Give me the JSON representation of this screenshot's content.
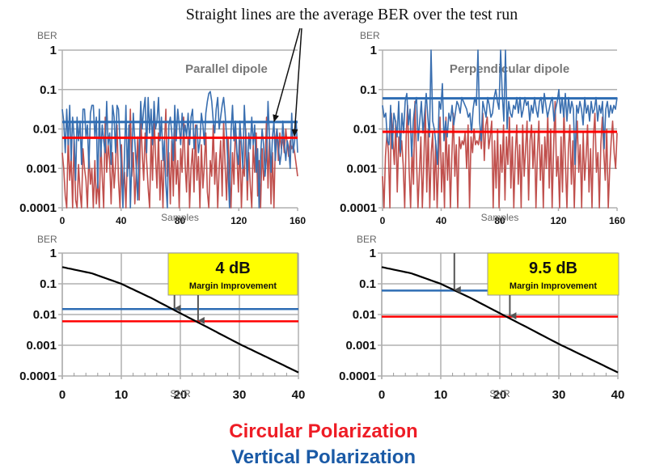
{
  "annotation": "Straight lines are the average BER over the test run",
  "legend": [
    {
      "label": "Circular Polarization",
      "color": "#ee1c25"
    },
    {
      "label": "Vertical Polarization",
      "color": "#1a5aa6"
    }
  ],
  "colors": {
    "vertical_line": "#3a6fb0",
    "vertical_avg": "#2e6db4",
    "circular_line": "#c0504d",
    "circular_avg": "#ff0000",
    "curve": "#000000",
    "grid": "#b0b0b0",
    "box_fill": "#ffff00"
  },
  "chart_data": [
    {
      "id": "parallel",
      "type": "line",
      "title": "Parallel dipole",
      "xlabel": "Samples",
      "ylabel": "BER",
      "yscale": "log",
      "ylim": [
        0.0001,
        1
      ],
      "xlim": [
        0,
        160
      ],
      "xticks": [
        "0",
        "40",
        "80",
        "120",
        "160"
      ],
      "yticks": [
        "1",
        "0.1",
        "0.01",
        "0.001",
        "0.0001"
      ],
      "grid": true,
      "series": [
        {
          "name": "Vertical Polarization",
          "avg": 0.015,
          "log_values": [
            -1.5,
            -1.8,
            -2.6,
            -1.5,
            -2.4,
            -1.4,
            -2.8,
            -1.7,
            -2.2,
            -3.3,
            -1.7,
            -2.3,
            -1.8,
            -2.9,
            -1.5,
            -1.5,
            -2.2,
            -1.9,
            -3.0,
            -1.6,
            -1.4,
            -1.4,
            -2.2,
            -1.7,
            -3.5,
            -1.5,
            -2.7,
            -1.9,
            -2.3,
            -2.6,
            -1.3,
            -2.4,
            -2.1,
            -2.9,
            -1.4,
            -1.7,
            -2.6,
            -1.4,
            -1.5,
            -2.3,
            -3.1,
            -4.0,
            -2.7,
            -1.4,
            -3.2,
            -1.9,
            -4.0,
            -2.8,
            -1.6,
            -2.3,
            -3.0,
            -3.8,
            -2.5,
            -1.3,
            -2.0,
            -1.5,
            -1.2,
            -2.6,
            -1.2,
            -2.1,
            -1.5,
            -2.4,
            -1.3,
            -2.0,
            -1.8,
            -1.2,
            -2.3,
            -1.7,
            -2.8,
            -2.3,
            -3.4,
            -4.0,
            -1.9,
            -1.7,
            -2.1,
            -2.8,
            -1.4,
            -2.3,
            -1.5,
            -1.9,
            -2.4,
            -1.6,
            -2.2,
            -1.9,
            -2.2,
            -1.6,
            -2.4,
            -1.7,
            -1.5,
            -2.5,
            -2.0,
            -1.9,
            -2.6,
            -2.3,
            -1.6,
            -1.9,
            -2.4,
            -1.6,
            -1.3,
            -1.1,
            -1.05,
            -1.3,
            -1.8,
            -2.1,
            -1.5,
            -1.2,
            -2.0,
            -1.7,
            -1.4,
            -1.2,
            -1.6,
            -2.2,
            -3.0,
            -4.0,
            -2.1,
            -1.4,
            -2.3,
            -1.8,
            -2.6,
            -2.9,
            -1.8,
            -2.4,
            -3.0,
            -1.4,
            -2.2,
            -3.3,
            -2.1,
            -2.5,
            -1.7,
            -2.4,
            -1.9,
            -3.1,
            -2.5,
            -4.0,
            -2.7,
            -2.0,
            -2.4,
            -3.2,
            -2.7,
            -1.3,
            -2.2,
            -3.1,
            -2.2,
            -1.8,
            -2.8,
            -2.0,
            -2.4,
            -2.9,
            -2.6,
            -1.8,
            -2.4,
            -2.8,
            -2.3,
            -2.5,
            -3.0,
            -1.6,
            -2.6,
            -2.3,
            -1.8,
            -2.6
          ],
          "color_key": "vertical_line"
        },
        {
          "name": "Circular Polarization",
          "avg": 0.006,
          "log_values": [
            -2.6,
            -3.0,
            -3.7,
            -4.0,
            -2.2,
            -3.3,
            -2.7,
            -4.0,
            -2.2,
            -3.8,
            -4.0,
            -2.9,
            -3.6,
            -4.0,
            -2.5,
            -3.0,
            -3.3,
            -4.0,
            -2.6,
            -3.4,
            -3.0,
            -4.0,
            -2.8,
            -3.9,
            -3.3,
            -4.0,
            -2.3,
            -3.2,
            -4.0,
            -1.7,
            -3.1,
            -2.4,
            -2.8,
            -3.9,
            -2.6,
            -3.5,
            -2.9,
            -1.9,
            -3.3,
            -4.0,
            -2.4,
            -3.6,
            -3.1,
            -4.0,
            -2.7,
            -3.0,
            -1.5,
            -3.2,
            -2.6,
            -3.9,
            -3.1,
            -2.2,
            -3.8,
            -1.6,
            -2.6,
            -3.3,
            -2.1,
            -2.8,
            -3.5,
            -4.0,
            -2.2,
            -3.3,
            -1.6,
            -2.7,
            -3.5,
            -2.1,
            -3.8,
            -2.8,
            -4.0,
            -2.4,
            -1.5,
            -3.2,
            -2.6,
            -3.9,
            -2.3,
            -3.7,
            -2.0,
            -3.4,
            -2.8,
            -4.0,
            -2.5,
            -3.1,
            -1.7,
            -2.9,
            -3.6,
            -2.2,
            -4.0,
            -3.0,
            -2.5,
            -3.6,
            -1.9,
            -3.3,
            -2.7,
            -4.0,
            -2.4,
            -3.5,
            -2.9,
            -2.1,
            -3.6,
            -4.0,
            -2.8,
            -3.2,
            -1.9,
            -3.4,
            -2.6,
            -4.0,
            -3.0,
            -2.3,
            -3.7,
            -1.8,
            -2.9,
            -3.8,
            -2.2,
            -3.1,
            -4.0,
            -2.6,
            -3.4,
            -1.9,
            -2.7,
            -3.6,
            -2.3,
            -4.0,
            -2.9,
            -3.2,
            -2.0,
            -3.8,
            -2.6,
            -3.4,
            -4.0,
            -2.4,
            -3.1,
            -2.1,
            -3.7,
            -2.8,
            -4.0,
            -2.5,
            -3.3,
            -2.9,
            -1.7,
            -3.5,
            -2.2,
            -3.9,
            -2.6,
            -4.0,
            -2.3,
            -2.0,
            -2.8,
            -2.1,
            -2.5,
            -2.2,
            -2.6,
            -2.0,
            -2.4,
            -2.7,
            -2.3,
            -2.5,
            -2.4,
            -2.6,
            -2.9,
            -3.2
          ],
          "color_key": "circular_line"
        }
      ],
      "annotation_arrows_target": [
        "Vertical avg line",
        "Circular avg line"
      ]
    },
    {
      "id": "perpendicular",
      "type": "line",
      "title": "Perpendicular dipole",
      "xlabel": "Samples",
      "ylabel": "BER",
      "yscale": "log",
      "ylim": [
        0.0001,
        1
      ],
      "xlim": [
        0,
        160
      ],
      "xticks": [
        "0",
        "40",
        "80",
        "120",
        "160"
      ],
      "yticks": [
        "1",
        "0.1",
        "0.01",
        "0.001",
        "0.0001"
      ],
      "grid": true,
      "series": [
        {
          "name": "Vertical Polarization",
          "avg": 0.06,
          "log_values": [
            -1.4,
            -1.7,
            -1.6,
            -2.3,
            -2.4,
            -1.4,
            -2.5,
            -1.6,
            -1.8,
            -2.2,
            -1.3,
            -2.6,
            -1.6,
            -2.1,
            -1.3,
            -1.1,
            -1.9,
            -1.5,
            -2.7,
            -1.8,
            -1.4,
            -1.2,
            -2.3,
            -1.8,
            -1.3,
            -2.1,
            -1.6,
            -1.1,
            -1.7,
            -2.2,
            -0.0,
            -1.8,
            -2.0,
            -2.4,
            -2.9,
            -1.3,
            -1.5,
            -0.85,
            -2.3,
            -1.8,
            -2.2,
            -1.6,
            -1.8,
            -1.4,
            -1.9,
            -1.6,
            -1.3,
            -1.4,
            -1.6,
            -1.2,
            -1.3,
            -1.4,
            -1.5,
            -1.7,
            -1.6,
            -2.1,
            -1.5,
            -1.2,
            -1.4,
            -0.0,
            -1.8,
            -2.3,
            -1.3,
            -1.5,
            -1.7,
            -1.2,
            -1.4,
            -1.7,
            -1.6,
            -1.2,
            -1.0,
            -1.3,
            -1.5,
            -0.0,
            -1.1,
            -1.8,
            -0.0,
            -2.0,
            -1.3,
            -1.6,
            -1.7,
            -1.4,
            -1.5,
            -1.2,
            -1.6,
            -1.2,
            -1.7,
            -1.5,
            -1.2,
            -1.4,
            -1.3,
            -1.8,
            -1.4,
            -1.6,
            -1.2,
            -1.5,
            -1.7,
            -1.3,
            -1.2,
            -1.6,
            -1.1,
            -1.4,
            -1.7,
            -1.5,
            -1.3,
            -1.2,
            -1.8,
            -1.5,
            -1.3,
            -1.0,
            -1.6,
            -1.2,
            -1.7,
            -1.1,
            -1.8,
            -1.2,
            -1.6,
            -1.3,
            -1.5,
            -2.9,
            -1.4,
            -1.6,
            -1.3,
            -1.5,
            -1.9,
            -1.2,
            -1.6,
            -1.4,
            -1.8,
            -1.3,
            -1.6,
            -1.5,
            -1.2,
            -1.8,
            -1.4,
            -1.6,
            -1.3,
            -2.5,
            -1.5,
            -1.3,
            -1.7,
            -1.4,
            -1.6,
            -1.4,
            -1.5,
            -1.2
          ],
          "color_key": "vertical_line"
        },
        {
          "name": "Circular Polarization",
          "avg": 0.0085,
          "log_values": [
            -3.2,
            -4.0,
            -2.7,
            -2.1,
            -2.6,
            -4.0,
            -1.6,
            -2.3,
            -2.9,
            -1.8,
            -3.6,
            -2.2,
            -2.7,
            -2.3,
            -2.9,
            -4.0,
            -2.2,
            -1.4,
            -3.0,
            -4.0,
            -2.5,
            -3.4,
            -1.3,
            -2.7,
            -4.0,
            -3.1,
            -2.2,
            -4.0,
            -2.8,
            -1.4,
            -3.6,
            -2.0,
            -4.0,
            -2.6,
            -2.1,
            -3.8,
            -2.3,
            -4.0,
            -2.9,
            -1.7,
            -3.6,
            -2.6,
            -4.0,
            -1.7,
            -3.3,
            -2.4,
            -4.0,
            -2.7,
            -1.6,
            -3.2,
            -2.4,
            -4.0,
            -2.2,
            -2.5,
            -2.3,
            -2.4,
            -2.1,
            -3.0,
            -1.9,
            -4.0,
            -2.2,
            -2.6,
            -2.0,
            -2.4,
            -2.3,
            -2.4,
            -2.1,
            -2.5,
            -1.6,
            -2.8,
            -1.9,
            -1.7,
            -2.5,
            -2.2,
            -1.8,
            -4.0,
            -2.3,
            -3.5,
            -2.0,
            -4.0,
            -2.4,
            -3.1,
            -1.9,
            -3.8,
            -2.2,
            -2.9,
            -1.7,
            -3.5,
            -2.2,
            -4.0,
            -2.6,
            -1.9,
            -3.4,
            -2.4,
            -4.0,
            -1.9,
            -3.2,
            -2.5,
            -1.8,
            -3.8,
            -2.3,
            -1.9,
            -3.0,
            -2.1,
            -4.0,
            -2.6,
            -1.8,
            -3.3,
            -2.4,
            -4.0,
            -2.2,
            -3.0,
            -1.6,
            -3.5,
            -2.0,
            -4.0,
            -2.4,
            -1.3,
            -3.2,
            -2.7,
            -4.0,
            -2.2,
            -3.6,
            -1.5,
            -2.9,
            -4.0,
            -2.5,
            -1.9,
            -3.4,
            -2.3,
            -4.0,
            -2.6,
            -1.8,
            -3.1,
            -2.4,
            -4.0,
            -2.1,
            -3.3,
            -2.7,
            -1.9,
            -3.6,
            -2.5,
            -4.0,
            -2.2,
            -1.6,
            -3.1,
            -2.6,
            -4.0,
            -2.4,
            -1.7,
            -2.6,
            -3.3,
            -2.0,
            -4.0,
            -3.0,
            -2.3,
            -1.8,
            -2.6,
            -3.0,
            -2.1
          ],
          "color_key": "circular_line"
        }
      ]
    },
    {
      "id": "parallel_snr",
      "type": "line",
      "title": "",
      "xlabel": "SNR",
      "ylabel": "BER",
      "yscale": "log",
      "ylim": [
        0.0001,
        1
      ],
      "xlim": [
        0,
        40
      ],
      "xticks": [
        "0",
        "10",
        "20",
        "30",
        "40"
      ],
      "yticks": [
        "1",
        "0.1",
        "0.01",
        "0.001",
        "0.0001"
      ],
      "grid": true,
      "curve": {
        "x": [
          0,
          5,
          10,
          15,
          20,
          25,
          30,
          35,
          40
        ],
        "y": [
          0.35,
          0.22,
          0.1,
          0.035,
          0.011,
          0.0035,
          0.0011,
          0.00038,
          0.00013
        ]
      },
      "hlines": [
        {
          "name": "Vertical Polarization",
          "y": 0.015,
          "snr": 19
        },
        {
          "name": "Circular Polarization",
          "y": 0.006,
          "snr": 23
        }
      ],
      "box": {
        "big": "4 dB",
        "small": "Margin Improvement"
      }
    },
    {
      "id": "perpendicular_snr",
      "type": "line",
      "title": "",
      "xlabel": "SNR",
      "ylabel": "BER",
      "yscale": "log",
      "ylim": [
        0.0001,
        1
      ],
      "xlim": [
        0,
        40
      ],
      "xticks": [
        "0",
        "10",
        "20",
        "30",
        "40"
      ],
      "yticks": [
        "1",
        "0.1",
        "0.01",
        "0.001",
        "0.0001"
      ],
      "grid": true,
      "curve": {
        "x": [
          0,
          5,
          10,
          15,
          20,
          25,
          30,
          35,
          40
        ],
        "y": [
          0.35,
          0.22,
          0.1,
          0.035,
          0.011,
          0.0035,
          0.0011,
          0.00038,
          0.00013
        ]
      },
      "hlines": [
        {
          "name": "Vertical Polarization",
          "y": 0.06,
          "snr": 12.3
        },
        {
          "name": "Circular Polarization",
          "y": 0.0085,
          "snr": 21.7
        }
      ],
      "box": {
        "big": "9.5 dB",
        "small": "Margin Improvement"
      }
    }
  ]
}
